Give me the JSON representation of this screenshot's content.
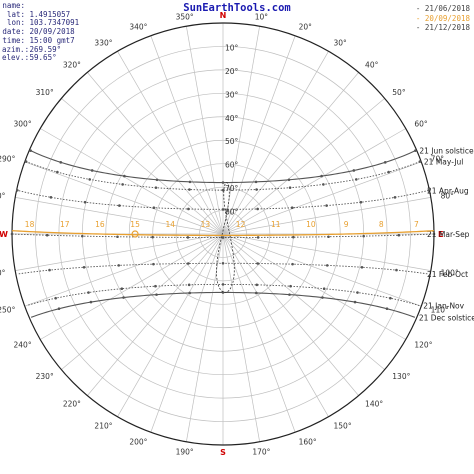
{
  "site_title": "SunEarthTools.com",
  "info": [
    {
      "key": "name:",
      "value": ""
    },
    {
      "key": "lat:",
      "value": "1.4915057"
    },
    {
      "key": "lon:",
      "value": "103.7347091"
    },
    {
      "key": "date:",
      "value": "20/09/2018"
    },
    {
      "key": "time:",
      "value": "15:00 gmt7"
    },
    {
      "key": "azim.:",
      "value": "269.59°"
    },
    {
      "key": "elev.:",
      "value": "59.65°"
    }
  ],
  "legend": [
    {
      "label": "- 21/06/2018",
      "color": "#444444"
    },
    {
      "label": "- 20/09/2018",
      "color": "#e8a030"
    },
    {
      "label": "- 21/12/2018",
      "color": "#444444"
    }
  ],
  "colors": {
    "grid": "#bfbfbf",
    "outer_circle": "#222222",
    "curve": "#555555",
    "today": "#e8a030",
    "hour_label": "#e8a030",
    "cardinal": "#d00000",
    "deg_label": "#333333"
  },
  "chart_data": {
    "type": "polar-sun-path",
    "cardinals": {
      "north": "N",
      "south": "S",
      "east": "E",
      "west": "W"
    },
    "azimuth_labels": [
      "10°",
      "20°",
      "30°",
      "40°",
      "50°",
      "60°",
      "70°",
      "80°",
      "100°",
      "110°",
      "120°",
      "130°",
      "140°",
      "150°",
      "160°",
      "170°",
      "190°",
      "200°",
      "210°",
      "220°",
      "230°",
      "240°",
      "250°",
      "260°",
      "280°",
      "290°",
      "300°",
      "310°",
      "320°",
      "330°",
      "340°",
      "350°"
    ],
    "azimuth_values": [
      10,
      20,
      30,
      40,
      50,
      60,
      70,
      80,
      100,
      110,
      120,
      130,
      140,
      150,
      160,
      170,
      190,
      200,
      210,
      220,
      230,
      240,
      250,
      260,
      280,
      290,
      300,
      310,
      320,
      330,
      340,
      350
    ],
    "elevation_labels": [
      "10°",
      "20°",
      "30°",
      "40°",
      "50°",
      "60°",
      "70°",
      "80°"
    ],
    "elevation_values": [
      10,
      20,
      30,
      40,
      50,
      60,
      70,
      80
    ],
    "day_paths": [
      {
        "name": "21 Jun solstice",
        "declination": 23.44,
        "style": "solid",
        "marker_interval_hours": 1
      },
      {
        "name": "21 May-Jul",
        "declination": 20.2,
        "style": "dotted",
        "marker_interval_hours": 1
      },
      {
        "name": "21 Apr-Aug",
        "declination": 12.0,
        "style": "dotted",
        "marker_interval_hours": 1
      },
      {
        "name": "21 Mar-Sep",
        "declination": 0.0,
        "style": "dotted",
        "marker_interval_hours": 1
      },
      {
        "name": "21 Feb-Oct",
        "declination": -11.0,
        "style": "dotted",
        "marker_interval_hours": 1
      },
      {
        "name": "21 Jan-Nov",
        "declination": -20.0,
        "style": "dotted",
        "marker_interval_hours": 1
      },
      {
        "name": "21 Dec solstice",
        "declination": -23.44,
        "style": "solid",
        "marker_interval_hours": 1
      }
    ],
    "today_path": {
      "date": "20/09/2018",
      "declination": 0.9
    },
    "hour_labels": [
      "18",
      "17",
      "16",
      "15",
      "14",
      "13",
      "12",
      "11",
      "10",
      "9",
      "8",
      "7"
    ],
    "hour_values": [
      18,
      17,
      16,
      15,
      14,
      13,
      12,
      11,
      10,
      9,
      8,
      7
    ],
    "highlight_hour": "15",
    "latitude": 1.4915057,
    "longitude": 103.7347091,
    "timezone": 7,
    "current": {
      "azimuth": 269.59,
      "elevation": 59.65
    }
  }
}
